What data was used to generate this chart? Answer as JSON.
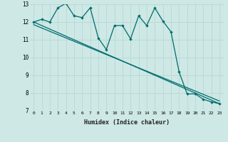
{
  "xlabel": "Humidex (Indice chaleur)",
  "ylabel": "",
  "background_color": "#cde8e5",
  "grid_color": "#b8d8d5",
  "line_color": "#006b6b",
  "xlim": [
    -0.5,
    23.5
  ],
  "ylim": [
    7,
    13
  ],
  "yticks": [
    7,
    8,
    9,
    10,
    11,
    12,
    13
  ],
  "xticks": [
    0,
    1,
    2,
    3,
    4,
    5,
    6,
    7,
    8,
    9,
    10,
    11,
    12,
    13,
    14,
    15,
    16,
    17,
    18,
    19,
    20,
    21,
    22,
    23
  ],
  "series1_x": [
    0,
    1,
    2,
    3,
    4,
    5,
    6,
    7,
    8,
    9,
    10,
    11,
    12,
    13,
    14,
    15,
    16,
    17,
    18,
    19,
    20,
    21,
    22,
    23
  ],
  "series1_y": [
    12.0,
    12.15,
    12.0,
    12.8,
    13.05,
    12.35,
    12.25,
    12.8,
    11.1,
    10.45,
    11.8,
    11.8,
    11.05,
    12.35,
    11.8,
    12.8,
    12.05,
    11.45,
    9.2,
    7.95,
    7.95,
    7.65,
    7.5,
    7.4
  ],
  "series2_x": [
    0,
    23
  ],
  "series2_y": [
    12.0,
    7.4
  ],
  "series3_x": [
    0,
    23
  ],
  "series3_y": [
    11.85,
    7.55
  ]
}
